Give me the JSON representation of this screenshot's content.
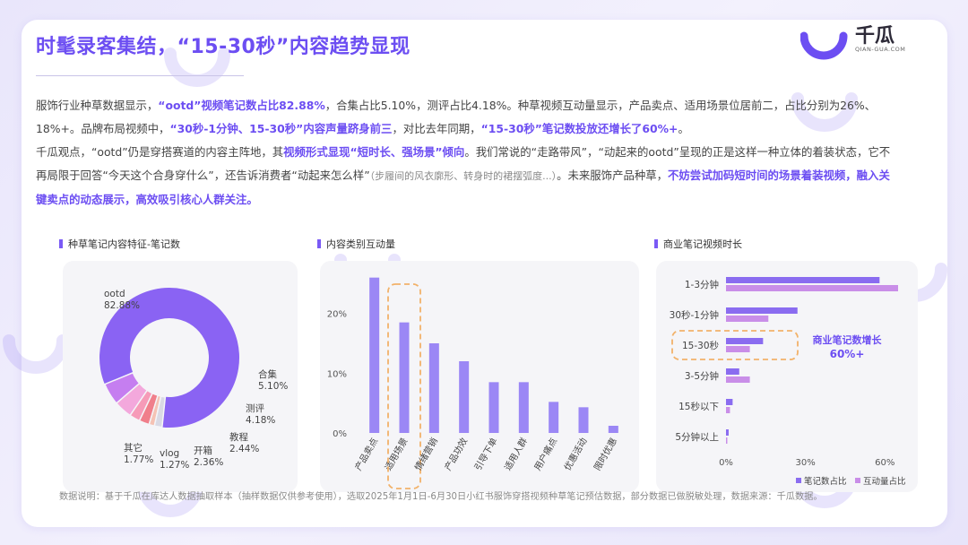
{
  "title": "时髦录客集结，“15-30秒”内容趋势显现",
  "logo": {
    "name": "千瓜",
    "sub": "QIAN-GUA.COM"
  },
  "paragraph1": {
    "t1": "服饰行业种草数据显示，",
    "h1": "“ootd”视频笔记数占比82.88%",
    "t2": "，合集占比5.10%，测评占比4.18%。种草视频互动量显示，产品卖点、适用场景位居前二，占比分别为26%、18%+。品牌布局视频中，",
    "h2": "“30秒-1分钟、15-30秒”内容声量跻身前三",
    "t3": "，对比去年同期，",
    "h3": "“15-30秒”笔记数投放还增长了60%+",
    "t4": "。"
  },
  "paragraph2": {
    "t1": "千瓜观点，“ootd”仍是穿搭赛道的内容主阵地，其",
    "h1": "视频形式显现“短时长、强场景”倾向",
    "t2": "。我们常说的“走路带风”，“动起来的ootd”呈现的正是这样一种立体的着装状态，它不再局限于回答“今天这个合身穿什么”，还告诉消费者“动起来怎么样”",
    "g1": "（步履间的风衣廓形、转身时的裙摆弧度...）",
    "t3": "。未来服饰产品种草，",
    "h2": "不妨尝试加码短时间的场景着装视频，融入关键卖点的动态展示，高效吸引核心人群关注。"
  },
  "section_titles": {
    "donut": "种草笔记内容特征-笔记数",
    "bar": "内容类别互动量",
    "hbar": "商业笔记视频时长"
  },
  "footnote": "数据说明：基于千瓜在库达人数据抽取样本（抽样数据仅供参考使用），选取2025年1月1日-6月30日小红书服饰穿搭视频种草笔记预估数据，部分数据已做脱敏处理，数据来源：千瓜数据。",
  "annotation": {
    "line1": "商业笔记数增长",
    "line2": "60%+"
  },
  "colors": {
    "accent": "#6c4ef2",
    "bar": "#9b87f5",
    "donut_main": "#8a63f3",
    "hbar_a": "#8a6cf0",
    "hbar_b": "#c98ee8",
    "highlight_dash": "#f2b26a"
  },
  "chart_data": [
    {
      "type": "pie",
      "title": "种草笔记内容特征-笔记数",
      "categories": [
        "ootd",
        "合集",
        "测评",
        "教程",
        "开箱",
        "vlog",
        "其它"
      ],
      "values": [
        82.88,
        5.1,
        4.18,
        2.44,
        2.36,
        1.27,
        1.77
      ],
      "labels": [
        "ootd\n82.88%",
        "合集\n5.10%",
        "测评\n4.18%",
        "教程\n2.44%",
        "开箱\n2.36%",
        "vlog\n1.27%",
        "其它\n1.77%"
      ],
      "colors": [
        "#8a63f3",
        "#c57ef0",
        "#f3a8dc",
        "#f69bb8",
        "#f07f8b",
        "#f5c2b4",
        "#d9d9e4"
      ],
      "donut": true
    },
    {
      "type": "bar",
      "title": "内容类别互动量",
      "categories": [
        "产品卖点",
        "适用场景",
        "情绪营销",
        "产品功效",
        "引导下单",
        "适用人群",
        "用户痛点",
        "优惠活动",
        "限时优惠"
      ],
      "values": [
        26,
        18.5,
        15,
        12,
        8.5,
        8.5,
        5.2,
        4.3,
        1.2
      ],
      "ylim": [
        0,
        27
      ],
      "yticks": [
        "0%",
        "10%",
        "20%"
      ],
      "ytick_values": [
        0,
        10,
        20
      ],
      "highlight_category": "适用场景",
      "grid": false
    },
    {
      "type": "bar",
      "orientation": "horizontal",
      "title": "商业笔记视频时长",
      "categories": [
        "1-3分钟",
        "30秒-1分钟",
        "15-30秒",
        "3-5分钟",
        "15秒以下",
        "5分钟以上"
      ],
      "series": [
        {
          "name": "笔记数占比",
          "values": [
            58,
            27,
            14,
            5,
            2.5,
            1
          ]
        },
        {
          "name": "互动量占比",
          "values": [
            65,
            16,
            9,
            9,
            1.5,
            0.5
          ]
        }
      ],
      "xlim": [
        0,
        65
      ],
      "xticks": [
        "0%",
        "30%",
        "60%"
      ],
      "xtick_values": [
        0,
        30,
        60
      ],
      "highlight_category": "15-30秒",
      "legend": "bottom-right"
    }
  ]
}
